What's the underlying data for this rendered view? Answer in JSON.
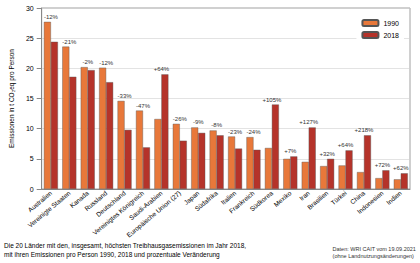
{
  "chart_data": {
    "type": "bar",
    "y_label": "Emissionen in t CO₂eq pro Person",
    "caption": [
      "Die 20 Länder mit den, insgesamt, höchsten Treibhausgasemissionen im Jahr 2018,",
      "mit ihren Emissionen pro Person 1990, 2018 und prozentuale Veränderung"
    ],
    "source": [
      "Daten: WRI CAIT vom 19.09.2021",
      "(ohne Landnutzungsänderungen)"
    ],
    "categories": [
      "Australien",
      "Vereinigte Staaten",
      "Kanada",
      "Russland",
      "Deutschland",
      "Vereinigtes Königreich",
      "Saudi-Arabien",
      "Europäische Union (27)",
      "Japan",
      "Südafrika",
      "Italien",
      "Frankreich",
      "Südkorea",
      "Mexiko",
      "Iran",
      "Brasilien",
      "Türkei",
      "China",
      "Indonesien",
      "Indien"
    ],
    "annotations": [
      "-12%",
      "-21%",
      "-2%",
      "-12%",
      "-33%",
      "-47%",
      "+64%",
      "-26%",
      "-9%",
      "-8%",
      "-23%",
      "-24%",
      "+105%",
      "+7%",
      "+127%",
      "+32%",
      "+64%",
      "+218%",
      "+72%",
      "+62%"
    ],
    "series": [
      {
        "name": "1990",
        "color": "#e8783a",
        "values": [
          27.7,
          23.6,
          20.2,
          20.1,
          14.6,
          13.0,
          11.6,
          10.8,
          10.2,
          9.7,
          8.7,
          8.6,
          6.8,
          5.0,
          4.5,
          3.8,
          3.9,
          2.8,
          1.8,
          1.6
        ]
      },
      {
        "name": "2018",
        "color": "#b5332a",
        "values": [
          24.4,
          18.6,
          19.7,
          17.7,
          9.8,
          6.9,
          19.0,
          8.0,
          9.3,
          8.9,
          6.7,
          6.5,
          14.0,
          5.4,
          10.2,
          5.0,
          6.4,
          8.9,
          3.1,
          2.6
        ]
      }
    ],
    "ylim": [
      0,
      30
    ],
    "yticks": [
      0,
      5,
      10,
      15,
      20,
      25,
      30
    ],
    "grid": true,
    "legend": "top-right"
  }
}
